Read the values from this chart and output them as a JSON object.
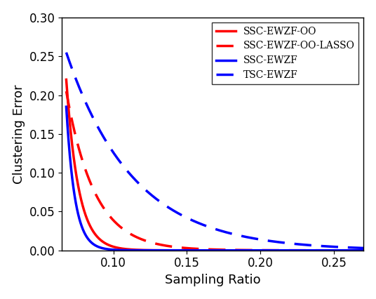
{
  "title": "",
  "xlabel": "Sampling Ratio",
  "ylabel": "Clustering Error",
  "xlim": [
    0.065,
    0.27
  ],
  "ylim": [
    0.0,
    0.3
  ],
  "xticks": [
    0.1,
    0.15,
    0.2,
    0.25
  ],
  "yticks": [
    0.0,
    0.05,
    0.1,
    0.15,
    0.2,
    0.25,
    0.3
  ],
  "curve_params": [
    {
      "label": "SSC-EWZF-OO",
      "color": "#FF0000",
      "linestyle": "solid",
      "linewidth": 2.5,
      "amplitude": 0.22,
      "decay": 200,
      "x0": 0.093
    },
    {
      "label": "SSC-EWZF-OO-LASSO",
      "color": "#FF0000",
      "linestyle": "dashed",
      "linewidth": 2.5,
      "amplitude": 0.205,
      "decay": 90,
      "x0": 0.093
    },
    {
      "label": "SSC-EWZF",
      "color": "#0000FF",
      "linestyle": "solid",
      "linewidth": 2.5,
      "amplitude": 0.185,
      "decay": 280,
      "x0": 0.093
    },
    {
      "label": "TSC-EWZF",
      "color": "#0000FF",
      "linestyle": "dashed",
      "linewidth": 2.5,
      "amplitude": 0.255,
      "decay": 32,
      "x0": 0.073
    }
  ],
  "legend_loc": "upper right",
  "background_color": "#ffffff",
  "tick_fontsize": 12,
  "label_fontsize": 13,
  "legend_fontsize": 10
}
